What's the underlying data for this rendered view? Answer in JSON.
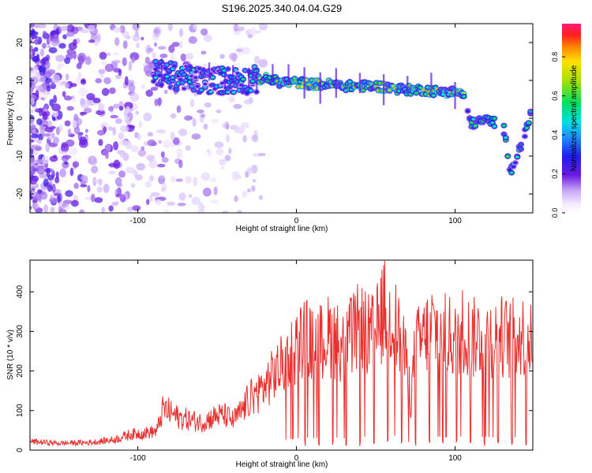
{
  "title": "S196.2025.340.04.04.G29",
  "colors": {
    "snr_line": "#e8302f",
    "axis": "#000000"
  },
  "colorbar": {
    "label": "Normalized spectral amplitude",
    "ticks": [
      "0.0",
      "0.2",
      "0.4",
      "0.6",
      "0.8"
    ],
    "tick_values": [
      0.0,
      0.2,
      0.4,
      0.6,
      0.8
    ],
    "range": [
      0,
      0.97
    ]
  },
  "chart_data": [
    {
      "type": "heatmap",
      "title": "",
      "xlabel": "Height of straight line (km)",
      "ylabel": "Frequency (Hz)",
      "xlim": [
        -168,
        149
      ],
      "ylim": [
        -25,
        25
      ],
      "xticks": [
        -100,
        0,
        100
      ],
      "yticks": [
        -20,
        -10,
        0,
        10,
        20
      ],
      "ridge": {
        "description": "Doppler frequency ridge of spectral amplitude",
        "x": [
          -90,
          -75,
          -60,
          -45,
          -30,
          -20,
          -10,
          0,
          10,
          20,
          30,
          40,
          50,
          60,
          70,
          80,
          90,
          100,
          105,
          110,
          115,
          120,
          125,
          130,
          135,
          140,
          145,
          148
        ],
        "freq": [
          12,
          11,
          10,
          10,
          10,
          10.5,
          9.5,
          9.5,
          9,
          9,
          8.5,
          8.5,
          8.5,
          8,
          7.5,
          7.5,
          7,
          7,
          6.5,
          -1.5,
          -1,
          -0.5,
          -1,
          -1,
          -14,
          -9,
          -3,
          2
        ]
      },
      "noise_region_x": [
        -168,
        -20
      ]
    },
    {
      "type": "line",
      "title": "",
      "xlabel": "Height of straight line (km)",
      "ylabel": "SNR (10 * v/v)",
      "xlim": [
        -168,
        149
      ],
      "ylim": [
        0,
        480
      ],
      "xticks": [
        -100,
        0,
        100
      ],
      "yticks": [
        0,
        100,
        200,
        300,
        400
      ],
      "series": [
        {
          "x": [
            -168,
            -150,
            -130,
            -115,
            -105,
            -95,
            -88,
            -84,
            -80,
            -75,
            -70,
            -65,
            -60,
            -55,
            -50,
            -45,
            -40,
            -35,
            -30,
            -25,
            -20,
            -15,
            -10,
            -5,
            0,
            5,
            10,
            15,
            20,
            25,
            30,
            35,
            40,
            45,
            50,
            55,
            60,
            65,
            70,
            72,
            75,
            80,
            85,
            90,
            95,
            100,
            105,
            110,
            115,
            120,
            125,
            130,
            135,
            140,
            145,
            149
          ],
          "values": [
            25,
            20,
            22,
            30,
            45,
            50,
            55,
            120,
            110,
            95,
            90,
            85,
            80,
            90,
            100,
            100,
            85,
            110,
            145,
            165,
            185,
            215,
            240,
            275,
            300,
            330,
            300,
            310,
            330,
            320,
            300,
            330,
            360,
            330,
            340,
            405,
            390,
            330,
            240,
            140,
            300,
            320,
            360,
            340,
            330,
            325,
            350,
            320,
            330,
            340,
            320,
            330,
            320,
            330,
            330,
            300
          ]
        }
      ]
    }
  ]
}
